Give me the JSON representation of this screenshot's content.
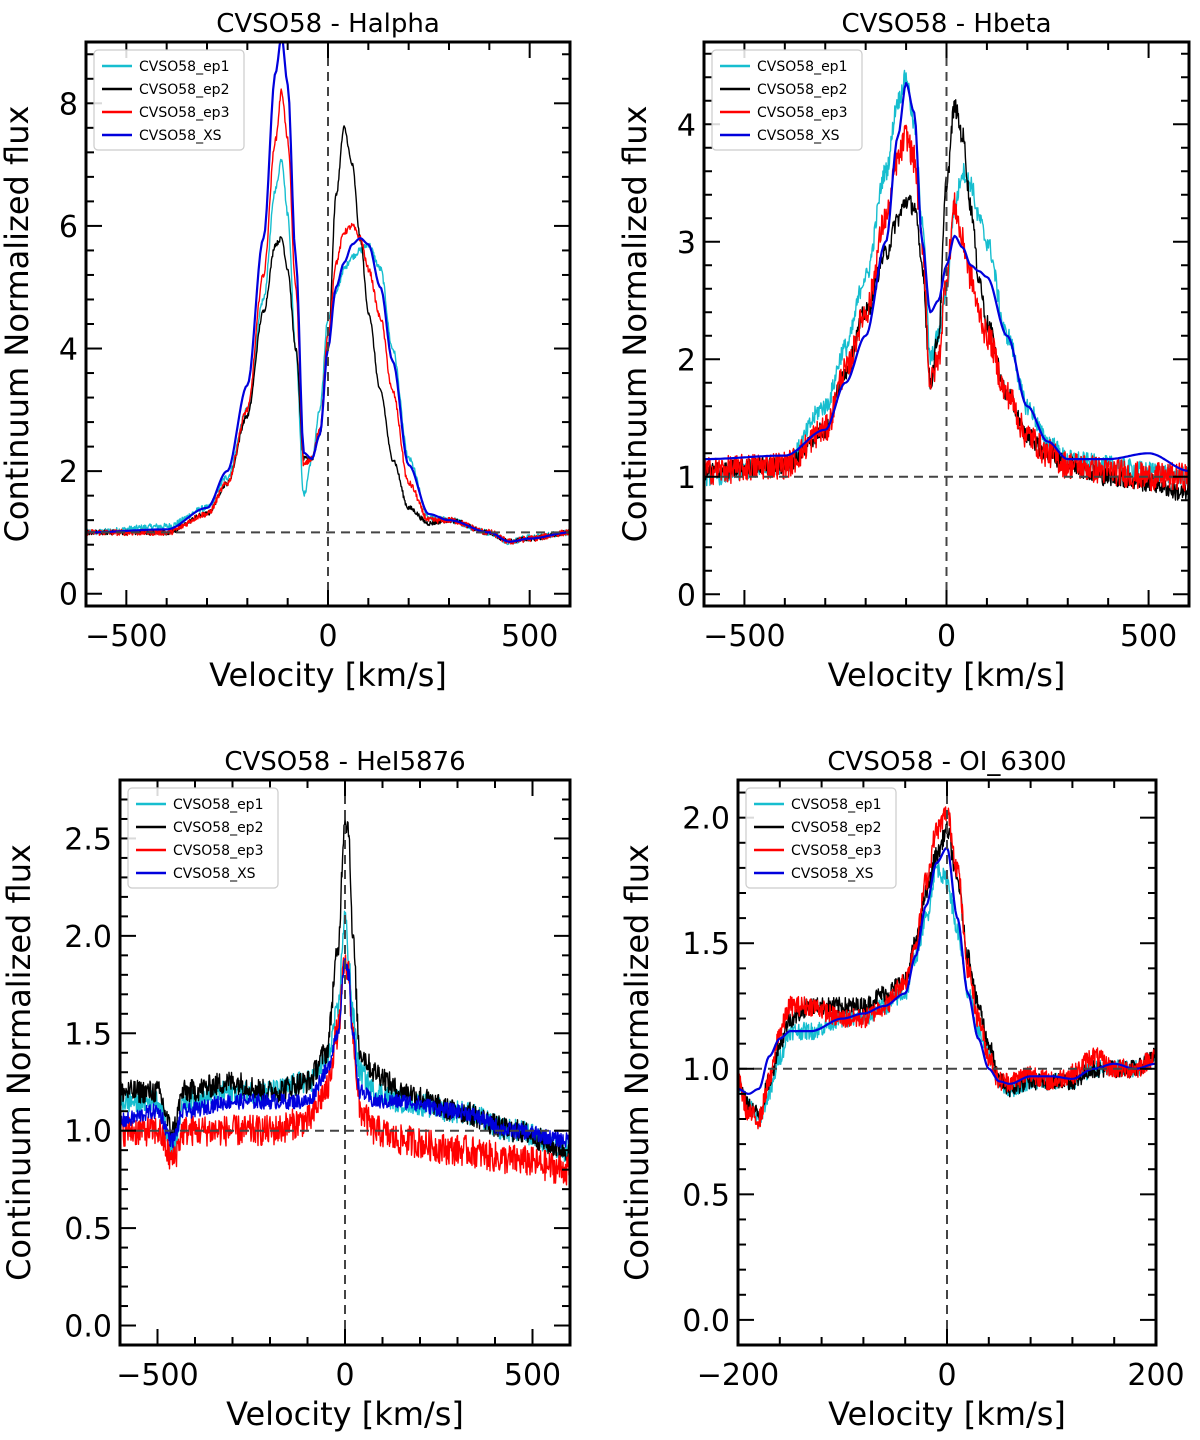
{
  "chart_data": [
    {
      "type": "line",
      "title": "CVSO58 - Halpha",
      "xlabel": "Velocity [km/s]",
      "ylabel": "Continuum Normalized flux",
      "xlim": [
        -600,
        600
      ],
      "ylim": [
        -0.2,
        9.0
      ],
      "xticks": [
        -500,
        0,
        500
      ],
      "yticks": [
        0,
        2,
        4,
        6,
        8
      ],
      "xtick_labels": [
        "−500",
        "0",
        "500"
      ],
      "ytick_labels": [
        "0",
        "2",
        "4",
        "6",
        "8"
      ],
      "hline": 1.0,
      "vline": 0,
      "legend_loc": "top-left",
      "series": [
        {
          "name": "CVSO58_ep1",
          "color": "#17becf",
          "noise": 0.05,
          "x": [
            -600,
            -400,
            -300,
            -250,
            -200,
            -160,
            -130,
            -115,
            -100,
            -80,
            -60,
            -40,
            -20,
            0,
            20,
            40,
            60,
            80,
            100,
            130,
            160,
            200,
            250,
            300,
            400,
            450,
            500,
            600
          ],
          "y": [
            1.0,
            1.1,
            1.4,
            1.9,
            3.0,
            4.8,
            6.6,
            7.1,
            6.2,
            4.0,
            1.6,
            2.2,
            3.0,
            4.5,
            4.9,
            5.3,
            5.5,
            5.6,
            5.7,
            5.3,
            4.0,
            2.2,
            1.25,
            1.2,
            1.0,
            0.85,
            0.92,
            1.0
          ]
        },
        {
          "name": "CVSO58_ep2",
          "color": "#000000",
          "noise": 0.04,
          "x": [
            -600,
            -400,
            -300,
            -250,
            -200,
            -160,
            -130,
            -115,
            -100,
            -80,
            -60,
            -40,
            -20,
            0,
            20,
            40,
            60,
            80,
            100,
            130,
            160,
            200,
            250,
            300,
            400,
            450,
            500,
            600
          ],
          "y": [
            1.0,
            1.0,
            1.3,
            1.8,
            2.9,
            4.6,
            5.7,
            5.8,
            5.3,
            4.0,
            2.2,
            2.2,
            2.6,
            4.0,
            6.5,
            7.6,
            7.0,
            5.8,
            4.6,
            3.3,
            2.2,
            1.4,
            1.15,
            1.2,
            1.0,
            0.85,
            0.9,
            1.0
          ]
        },
        {
          "name": "CVSO58_ep3",
          "color": "#ff0000",
          "noise": 0.05,
          "x": [
            -600,
            -400,
            -300,
            -250,
            -200,
            -160,
            -130,
            -115,
            -100,
            -80,
            -60,
            -40,
            -20,
            0,
            20,
            40,
            60,
            80,
            100,
            130,
            160,
            200,
            250,
            300,
            400,
            450,
            500,
            600
          ],
          "y": [
            1.0,
            1.0,
            1.3,
            1.8,
            3.0,
            5.2,
            7.4,
            8.2,
            7.4,
            5.0,
            2.1,
            2.2,
            2.7,
            4.2,
            5.4,
            5.9,
            6.0,
            5.8,
            5.3,
            4.5,
            3.3,
            1.8,
            1.2,
            1.2,
            1.0,
            0.85,
            0.9,
            1.0
          ]
        },
        {
          "name": "CVSO58_XS",
          "color": "#0000dd",
          "noise": 0.0,
          "x": [
            -600,
            -400,
            -300,
            -250,
            -200,
            -160,
            -130,
            -115,
            -100,
            -80,
            -60,
            -40,
            -20,
            0,
            20,
            40,
            60,
            80,
            100,
            130,
            160,
            200,
            250,
            300,
            400,
            450,
            500,
            600
          ],
          "y": [
            1.0,
            1.05,
            1.4,
            2.0,
            3.4,
            5.8,
            8.5,
            9.1,
            8.3,
            5.5,
            2.3,
            2.2,
            2.6,
            4.0,
            5.0,
            5.4,
            5.7,
            5.8,
            5.7,
            5.0,
            3.8,
            2.1,
            1.3,
            1.2,
            1.0,
            0.85,
            0.9,
            1.0
          ]
        }
      ]
    },
    {
      "type": "line",
      "title": "CVSO58 - Hbeta",
      "xlabel": "Velocity [km/s]",
      "ylabel": "Continuum Normalized flux",
      "xlim": [
        -600,
        600
      ],
      "ylim": [
        -0.1,
        4.7
      ],
      "xticks": [
        -500,
        0,
        500
      ],
      "yticks": [
        0,
        1,
        2,
        3,
        4
      ],
      "xtick_labels": [
        "−500",
        "0",
        "500"
      ],
      "ytick_labels": [
        "0",
        "1",
        "2",
        "3",
        "4"
      ],
      "hline": 1.0,
      "vline": 0,
      "legend_loc": "top-left",
      "series": [
        {
          "name": "CVSO58_ep1",
          "color": "#17becf",
          "noise": 0.08,
          "x": [
            -600,
            -400,
            -300,
            -250,
            -200,
            -150,
            -120,
            -100,
            -80,
            -60,
            -40,
            -20,
            0,
            20,
            40,
            60,
            80,
            100,
            150,
            200,
            250,
            300,
            400,
            500,
            600
          ],
          "y": [
            1.0,
            1.1,
            1.6,
            2.1,
            2.7,
            3.6,
            4.2,
            4.4,
            4.0,
            3.2,
            2.0,
            2.2,
            2.6,
            3.3,
            3.6,
            3.5,
            3.2,
            3.0,
            2.2,
            1.6,
            1.3,
            1.15,
            1.1,
            1.05,
            1.0
          ]
        },
        {
          "name": "CVSO58_ep2",
          "color": "#000000",
          "noise": 0.08,
          "x": [
            -600,
            -400,
            -300,
            -250,
            -200,
            -150,
            -120,
            -100,
            -80,
            -60,
            -40,
            -20,
            0,
            20,
            40,
            60,
            80,
            100,
            150,
            200,
            250,
            300,
            400,
            500,
            600
          ],
          "y": [
            1.05,
            1.1,
            1.4,
            1.9,
            2.4,
            2.9,
            3.2,
            3.35,
            3.3,
            2.8,
            1.8,
            2.2,
            3.5,
            4.15,
            3.9,
            3.3,
            2.7,
            2.3,
            1.7,
            1.35,
            1.2,
            1.1,
            1.0,
            0.95,
            0.85
          ]
        },
        {
          "name": "CVSO58_ep3",
          "color": "#ff0000",
          "noise": 0.12,
          "x": [
            -600,
            -400,
            -300,
            -250,
            -200,
            -150,
            -120,
            -100,
            -80,
            -60,
            -40,
            -20,
            0,
            20,
            40,
            60,
            80,
            100,
            150,
            200,
            250,
            300,
            400,
            500,
            600
          ],
          "y": [
            1.05,
            1.1,
            1.4,
            1.9,
            2.4,
            3.2,
            3.7,
            3.9,
            3.7,
            3.0,
            1.8,
            2.0,
            2.7,
            3.3,
            3.0,
            2.7,
            2.4,
            2.2,
            1.7,
            1.35,
            1.2,
            1.1,
            1.05,
            1.0,
            1.0
          ]
        },
        {
          "name": "CVSO58_XS",
          "color": "#0000dd",
          "noise": 0.0,
          "x": [
            -600,
            -400,
            -300,
            -250,
            -200,
            -150,
            -120,
            -100,
            -80,
            -60,
            -40,
            -20,
            0,
            20,
            40,
            60,
            80,
            100,
            150,
            200,
            250,
            300,
            400,
            500,
            600
          ],
          "y": [
            1.15,
            1.18,
            1.4,
            1.8,
            2.2,
            3.0,
            3.9,
            4.35,
            4.1,
            3.0,
            2.4,
            2.5,
            2.8,
            3.05,
            2.95,
            2.8,
            2.75,
            2.7,
            2.2,
            1.6,
            1.3,
            1.15,
            1.15,
            1.2,
            1.05
          ]
        }
      ]
    },
    {
      "type": "line",
      "title": "CVSO58 - HeI5876",
      "xlabel": "Velocity [km/s]",
      "ylabel": "Continuum Normalized flux",
      "xlim": [
        -600,
        600
      ],
      "ylim": [
        -0.1,
        2.8
      ],
      "xticks": [
        -500,
        0,
        500
      ],
      "yticks": [
        0.0,
        0.5,
        1.0,
        1.5,
        2.0,
        2.5
      ],
      "xtick_labels": [
        "−500",
        "0",
        "500"
      ],
      "ytick_labels": [
        "0.0",
        "0.5",
        "1.0",
        "1.5",
        "2.0",
        "2.5"
      ],
      "hline": 1.0,
      "vline": 0,
      "legend_loc": "top-left",
      "series": [
        {
          "name": "CVSO58_ep1",
          "color": "#17becf",
          "noise": 0.06,
          "x": [
            -600,
            -500,
            -460,
            -430,
            -300,
            -200,
            -100,
            -50,
            -20,
            0,
            10,
            20,
            40,
            80,
            150,
            300,
            450,
            600
          ],
          "y": [
            1.15,
            1.15,
            0.9,
            1.15,
            1.2,
            1.2,
            1.25,
            1.35,
            1.6,
            2.1,
            1.9,
            1.6,
            1.3,
            1.2,
            1.15,
            1.1,
            1.0,
            0.9
          ]
        },
        {
          "name": "CVSO58_ep2",
          "color": "#000000",
          "noise": 0.06,
          "x": [
            -600,
            -500,
            -460,
            -430,
            -300,
            -200,
            -100,
            -50,
            -20,
            0,
            10,
            20,
            40,
            80,
            150,
            300,
            450,
            600
          ],
          "y": [
            1.2,
            1.2,
            1.0,
            1.2,
            1.25,
            1.2,
            1.25,
            1.4,
            1.9,
            2.6,
            2.55,
            2.0,
            1.4,
            1.3,
            1.2,
            1.1,
            1.0,
            0.9
          ]
        },
        {
          "name": "CVSO58_ep3",
          "color": "#ff0000",
          "noise": 0.08,
          "x": [
            -600,
            -500,
            -460,
            -430,
            -300,
            -200,
            -100,
            -50,
            -20,
            0,
            10,
            20,
            40,
            80,
            150,
            300,
            450,
            600
          ],
          "y": [
            1.0,
            1.0,
            0.85,
            1.0,
            1.0,
            1.0,
            1.05,
            1.2,
            1.5,
            1.85,
            1.8,
            1.5,
            1.1,
            1.0,
            0.95,
            0.9,
            0.85,
            0.8
          ]
        },
        {
          "name": "CVSO58_XS",
          "color": "#0000dd",
          "noise": 0.04,
          "x": [
            -600,
            -500,
            -460,
            -430,
            -300,
            -200,
            -100,
            -50,
            -20,
            0,
            10,
            20,
            40,
            80,
            150,
            300,
            450,
            600
          ],
          "y": [
            1.05,
            1.1,
            0.95,
            1.1,
            1.15,
            1.15,
            1.15,
            1.3,
            1.5,
            1.85,
            1.8,
            1.5,
            1.2,
            1.15,
            1.15,
            1.1,
            1.0,
            0.95
          ]
        }
      ]
    },
    {
      "type": "line",
      "title": "CVSO58 - OI_6300",
      "xlabel": "Velocity [km/s]",
      "ylabel": "Continuum Normalized flux",
      "xlim": [
        -200,
        200
      ],
      "ylim": [
        -0.1,
        2.15
      ],
      "xticks": [
        -200,
        0,
        200
      ],
      "yticks": [
        0.0,
        0.5,
        1.0,
        1.5,
        2.0
      ],
      "xtick_labels": [
        "−200",
        "0",
        "200"
      ],
      "ytick_labels": [
        "0.0",
        "0.5",
        "1.0",
        "1.5",
        "2.0"
      ],
      "hline": 1.0,
      "vline": 0,
      "legend_loc": "top-left",
      "series": [
        {
          "name": "CVSO58_ep1",
          "color": "#17becf",
          "noise": 0.035,
          "x": [
            -200,
            -190,
            -180,
            -170,
            -160,
            -150,
            -130,
            -100,
            -80,
            -60,
            -40,
            -30,
            -20,
            -10,
            0,
            10,
            20,
            30,
            40,
            50,
            60,
            80,
            100,
            120,
            140,
            160,
            180,
            200
          ],
          "y": [
            0.95,
            0.85,
            0.8,
            0.9,
            1.05,
            1.15,
            1.15,
            1.2,
            1.2,
            1.25,
            1.3,
            1.45,
            1.6,
            1.8,
            1.75,
            1.55,
            1.3,
            1.15,
            1.05,
            0.95,
            0.92,
            0.95,
            0.95,
            0.95,
            1.0,
            1.0,
            1.0,
            1.05
          ]
        },
        {
          "name": "CVSO58_ep2",
          "color": "#000000",
          "noise": 0.035,
          "x": [
            -200,
            -190,
            -180,
            -170,
            -160,
            -150,
            -130,
            -100,
            -80,
            -60,
            -40,
            -30,
            -20,
            -10,
            0,
            10,
            20,
            30,
            40,
            50,
            60,
            80,
            100,
            120,
            140,
            160,
            180,
            200
          ],
          "y": [
            0.95,
            0.85,
            0.82,
            0.95,
            1.1,
            1.2,
            1.25,
            1.25,
            1.25,
            1.3,
            1.35,
            1.5,
            1.7,
            1.85,
            1.95,
            1.75,
            1.45,
            1.25,
            1.1,
            0.95,
            0.92,
            0.95,
            0.95,
            0.95,
            1.0,
            1.0,
            1.0,
            1.05
          ]
        },
        {
          "name": "CVSO58_ep3",
          "color": "#ff0000",
          "noise": 0.04,
          "x": [
            -200,
            -190,
            -180,
            -170,
            -160,
            -150,
            -130,
            -100,
            -80,
            -60,
            -40,
            -30,
            -20,
            -10,
            0,
            10,
            20,
            30,
            40,
            50,
            60,
            80,
            100,
            120,
            140,
            160,
            180,
            200
          ],
          "y": [
            0.95,
            0.82,
            0.8,
            0.95,
            1.15,
            1.25,
            1.25,
            1.2,
            1.2,
            1.25,
            1.35,
            1.5,
            1.75,
            1.95,
            2.02,
            1.8,
            1.4,
            1.2,
            1.05,
            0.95,
            0.95,
            0.98,
            0.95,
            0.98,
            1.05,
            1.0,
            1.0,
            1.05
          ]
        },
        {
          "name": "CVSO58_XS",
          "color": "#0000dd",
          "noise": 0.0,
          "x": [
            -200,
            -190,
            -180,
            -170,
            -160,
            -150,
            -130,
            -100,
            -80,
            -60,
            -40,
            -30,
            -20,
            -10,
            0,
            10,
            20,
            30,
            40,
            50,
            60,
            80,
            100,
            120,
            140,
            160,
            180,
            200
          ],
          "y": [
            0.92,
            0.9,
            0.92,
            1.05,
            1.12,
            1.15,
            1.15,
            1.2,
            1.22,
            1.25,
            1.3,
            1.45,
            1.65,
            1.82,
            1.88,
            1.6,
            1.3,
            1.12,
            1.0,
            0.95,
            0.94,
            0.97,
            0.97,
            0.96,
            1.0,
            1.02,
            1.0,
            1.02
          ]
        }
      ]
    }
  ]
}
